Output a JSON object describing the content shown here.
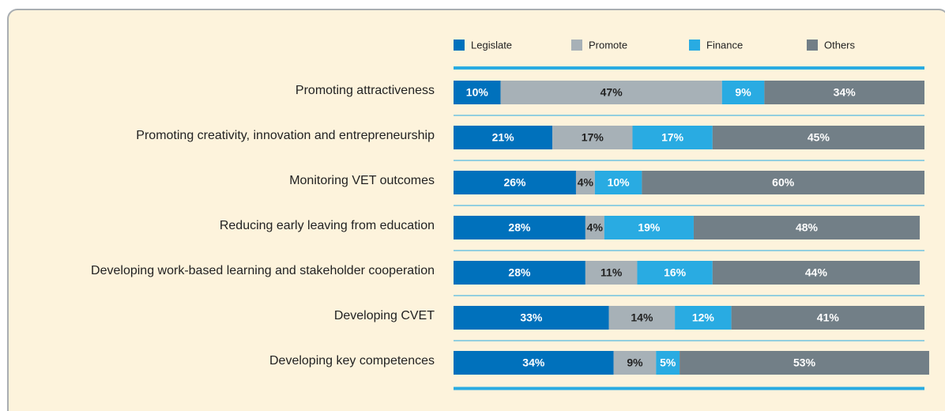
{
  "chart_data": {
    "type": "stacked_barh",
    "categories": [
      "Promoting attractiveness",
      "Promoting creativity, innovation and entrepreneurship",
      "Monitoring VET outcomes",
      "Reducing early leaving from education",
      "Developing work-based learning and stakeholder cooperation",
      "Developing CVET",
      "Developing key competences"
    ],
    "series": [
      {
        "name": "Legislate",
        "color": "#0071bc",
        "label_color": "#ffffff",
        "values": [
          10,
          21,
          26,
          28,
          28,
          33,
          34
        ],
        "value_labels": [
          "10%",
          "21%",
          "26%",
          "28%",
          "28%",
          "33%",
          "34%"
        ]
      },
      {
        "name": "Promote",
        "color": "#a7b1b7",
        "label_color": "#222222",
        "values": [
          47,
          17,
          4,
          4,
          11,
          14,
          9
        ],
        "value_labels": [
          "47%",
          "17%",
          "4%",
          "4%",
          "11%",
          "14%",
          "9%"
        ]
      },
      {
        "name": "Finance",
        "color": "#29abe2",
        "label_color": "#ffffff",
        "values": [
          9,
          17,
          10,
          19,
          16,
          12,
          5
        ],
        "value_labels": [
          "9%",
          "17%",
          "10%",
          "19%",
          "16%",
          "12%",
          "5%"
        ]
      },
      {
        "name": "Others",
        "color": "#727f87",
        "label_color": "#ffffff",
        "values": [
          34,
          45,
          60,
          48,
          44,
          41,
          53
        ],
        "value_labels": [
          "34%",
          "45%",
          "60%",
          "48%",
          "44%",
          "41%",
          "53%"
        ]
      }
    ],
    "xlim": [
      0,
      100
    ],
    "legend": "top"
  }
}
